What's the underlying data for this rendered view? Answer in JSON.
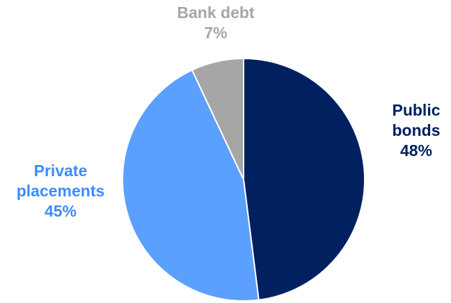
{
  "chart_data": {
    "type": "pie",
    "categories": [
      "Public bonds",
      "Private placements",
      "Bank debt"
    ],
    "values": [
      48,
      45,
      7
    ],
    "labels": [
      {
        "lines": [
          "Public",
          "bonds"
        ],
        "value_label": "48%"
      },
      {
        "lines": [
          "Private",
          "placements"
        ],
        "value_label": "45%"
      },
      {
        "lines": [
          "Bank debt"
        ],
        "value_label": "7%"
      }
    ],
    "colors": [
      "#002060",
      "#5B9FFF",
      "#A6A6A6"
    ],
    "label_colors": [
      "#002060",
      "#3D8BFF",
      "#A6A6A6"
    ],
    "start": "12 o'clock",
    "direction": "clockwise",
    "legend": "none"
  }
}
